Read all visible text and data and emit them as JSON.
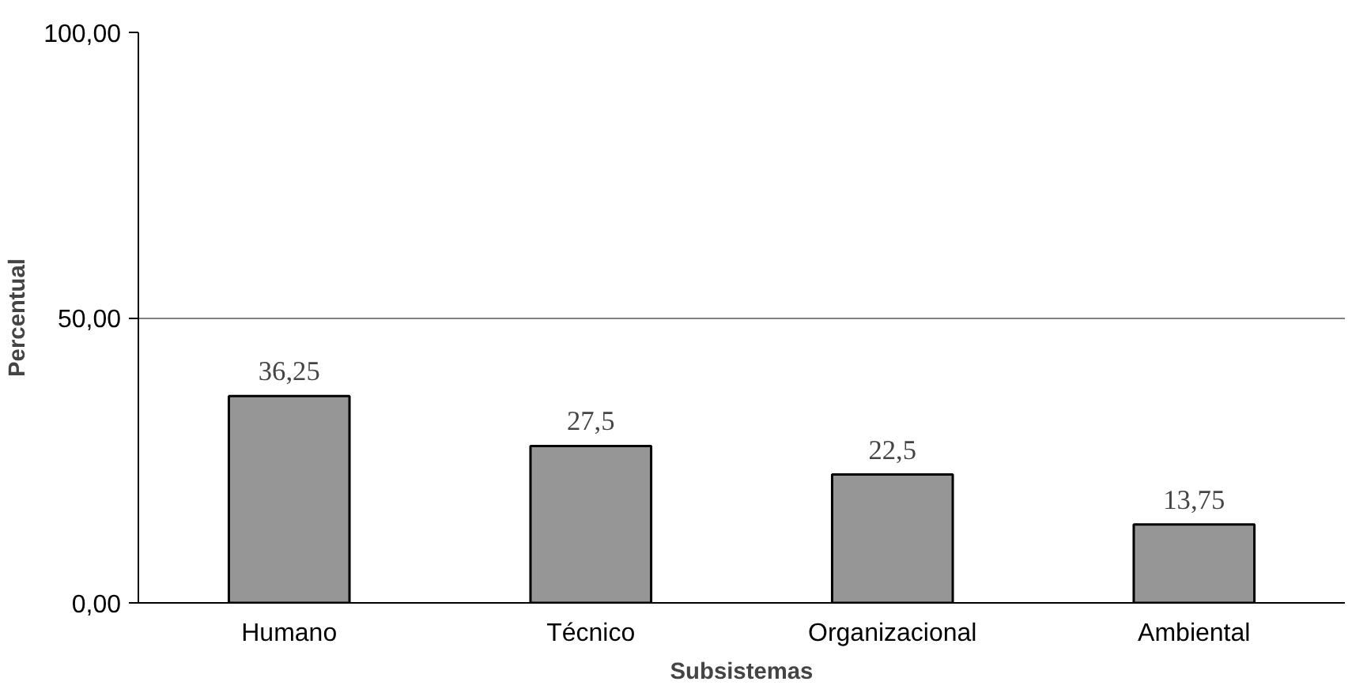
{
  "chart_data": {
    "type": "bar",
    "xlabel": "Subsistemas",
    "ylabel": "Percentual",
    "categories": [
      "Humano",
      "Técnico",
      "Organizacional",
      "Ambiental"
    ],
    "values": [
      36.25,
      27.5,
      22.5,
      13.75
    ],
    "value_labels": [
      "36,25",
      "27,5",
      "22,5",
      "13,75"
    ],
    "color": "#969696",
    "ylim": [
      0,
      100
    ],
    "yticks": [
      {
        "value": 0,
        "label": "0,00"
      },
      {
        "value": 50,
        "label": "50,00"
      },
      {
        "value": 100,
        "label": "100,00"
      }
    ],
    "grid": "y"
  }
}
